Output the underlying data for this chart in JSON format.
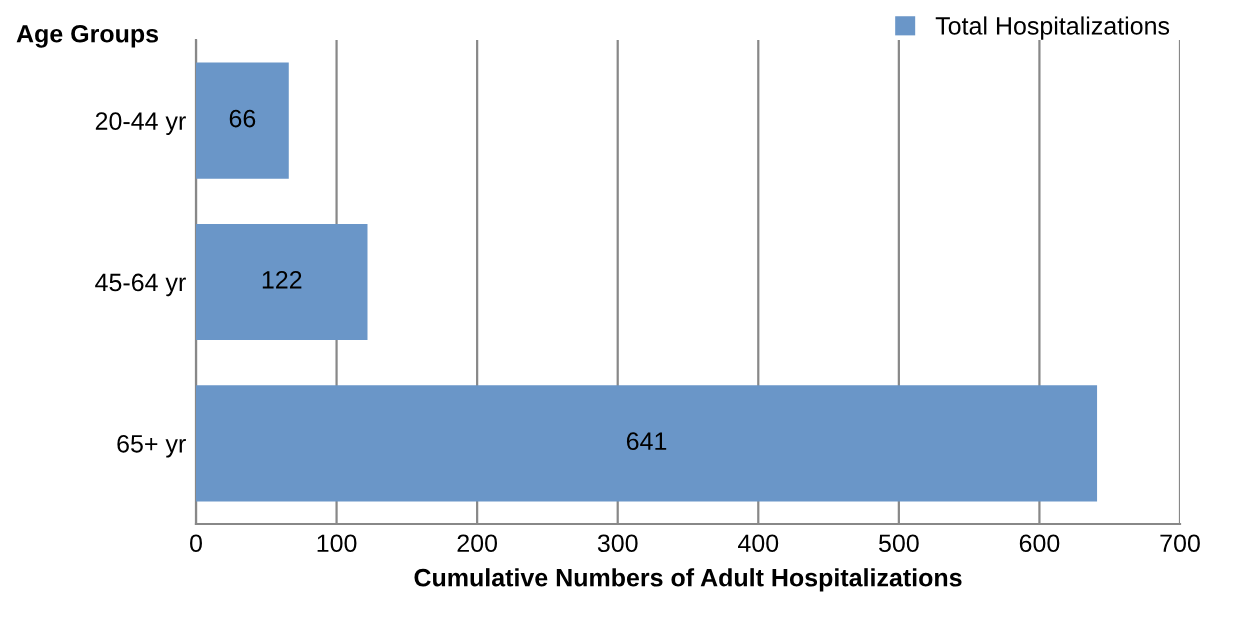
{
  "chart_data": {
    "type": "bar",
    "orientation": "horizontal",
    "xlabel": "Cumulative Numbers of Adult Hospitalizations",
    "ylabel": "Age Groups",
    "categories": [
      "20-44 yr",
      "45-64 yr",
      "65+ yr"
    ],
    "series": [
      {
        "name": "Total Hospitalizations",
        "color": "#6a96c8",
        "values": [
          66,
          122,
          641
        ]
      }
    ],
    "xlim": [
      0,
      700
    ],
    "xticks": [
      0,
      100,
      200,
      300,
      400,
      500,
      600,
      700
    ],
    "grid": "x",
    "legend": "top right",
    "data_labels": true
  }
}
